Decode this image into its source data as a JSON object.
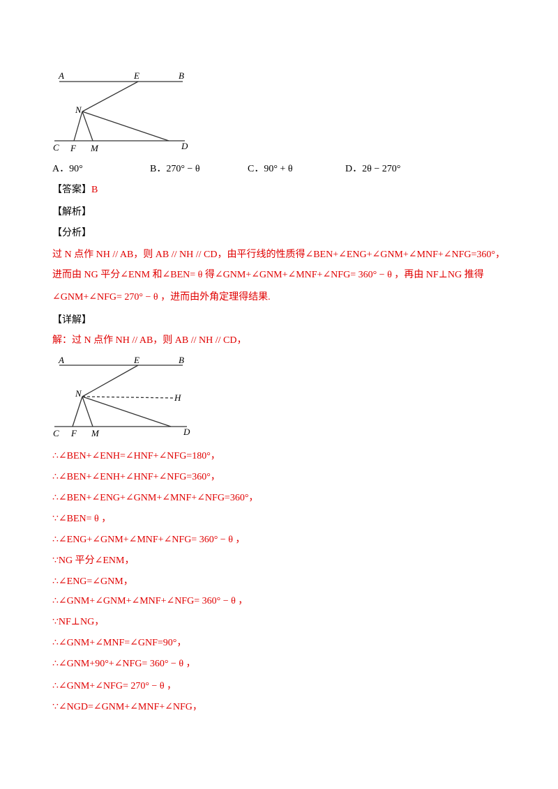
{
  "figure1": {
    "labels": [
      "A",
      "E",
      "B",
      "N",
      "C",
      "F",
      "M",
      "D"
    ]
  },
  "options": [
    "A．90°",
    "B．270° − θ",
    "C．90° + θ",
    "D．2θ − 270°"
  ],
  "answer": {
    "tag": "【答案】",
    "value": "B"
  },
  "analysis_tag": "【解析】",
  "fenxi": {
    "tag": "【分析】",
    "lines": [
      "过 N 点作 NH // AB，则 AB // NH // CD，由平行线的性质得∠BEN+∠ENG+∠GNM+∠MNF+∠NFG=360°，",
      "进而由 NG 平分∠ENM 和∠BEN= θ 得∠GNM+∠GNM+∠MNF+∠NFG= 360° − θ ，再由 NF⊥NG 推得",
      "∠GNM+∠NFG= 270° − θ ，进而由外角定理得结果."
    ]
  },
  "detail": {
    "tag": "【详解】",
    "intro": "解：过 N 点作 NH // AB，则 AB // NH // CD，"
  },
  "figure2": {
    "labels": [
      "A",
      "E",
      "B",
      "N",
      "H",
      "C",
      "F",
      "M",
      "D"
    ]
  },
  "steps": [
    "∴∠BEN+∠ENH=∠HNF+∠NFG=180°，",
    "∴∠BEN+∠ENH+∠HNF+∠NFG=360°，",
    "∴∠BEN+∠ENG+∠GNM+∠MNF+∠NFG=360°，",
    "∵∠BEN= θ ，",
    "∴∠ENG+∠GNM+∠MNF+∠NFG= 360° − θ ，",
    "∵NG 平分∠ENM，",
    "∴∠ENG=∠GNM，",
    "∴∠GNM+∠GNM+∠MNF+∠NFG= 360° − θ ，",
    "∵NF⊥NG，",
    "∴∠GNM+∠MNF=∠GNF=90°，",
    "∴∠GNM+90°+∠NFG= 360° − θ ，",
    "∴∠GNM+∠NFG= 270° − θ ，",
    "∵∠NGD=∠GNM+∠MNF+∠NFG，"
  ]
}
